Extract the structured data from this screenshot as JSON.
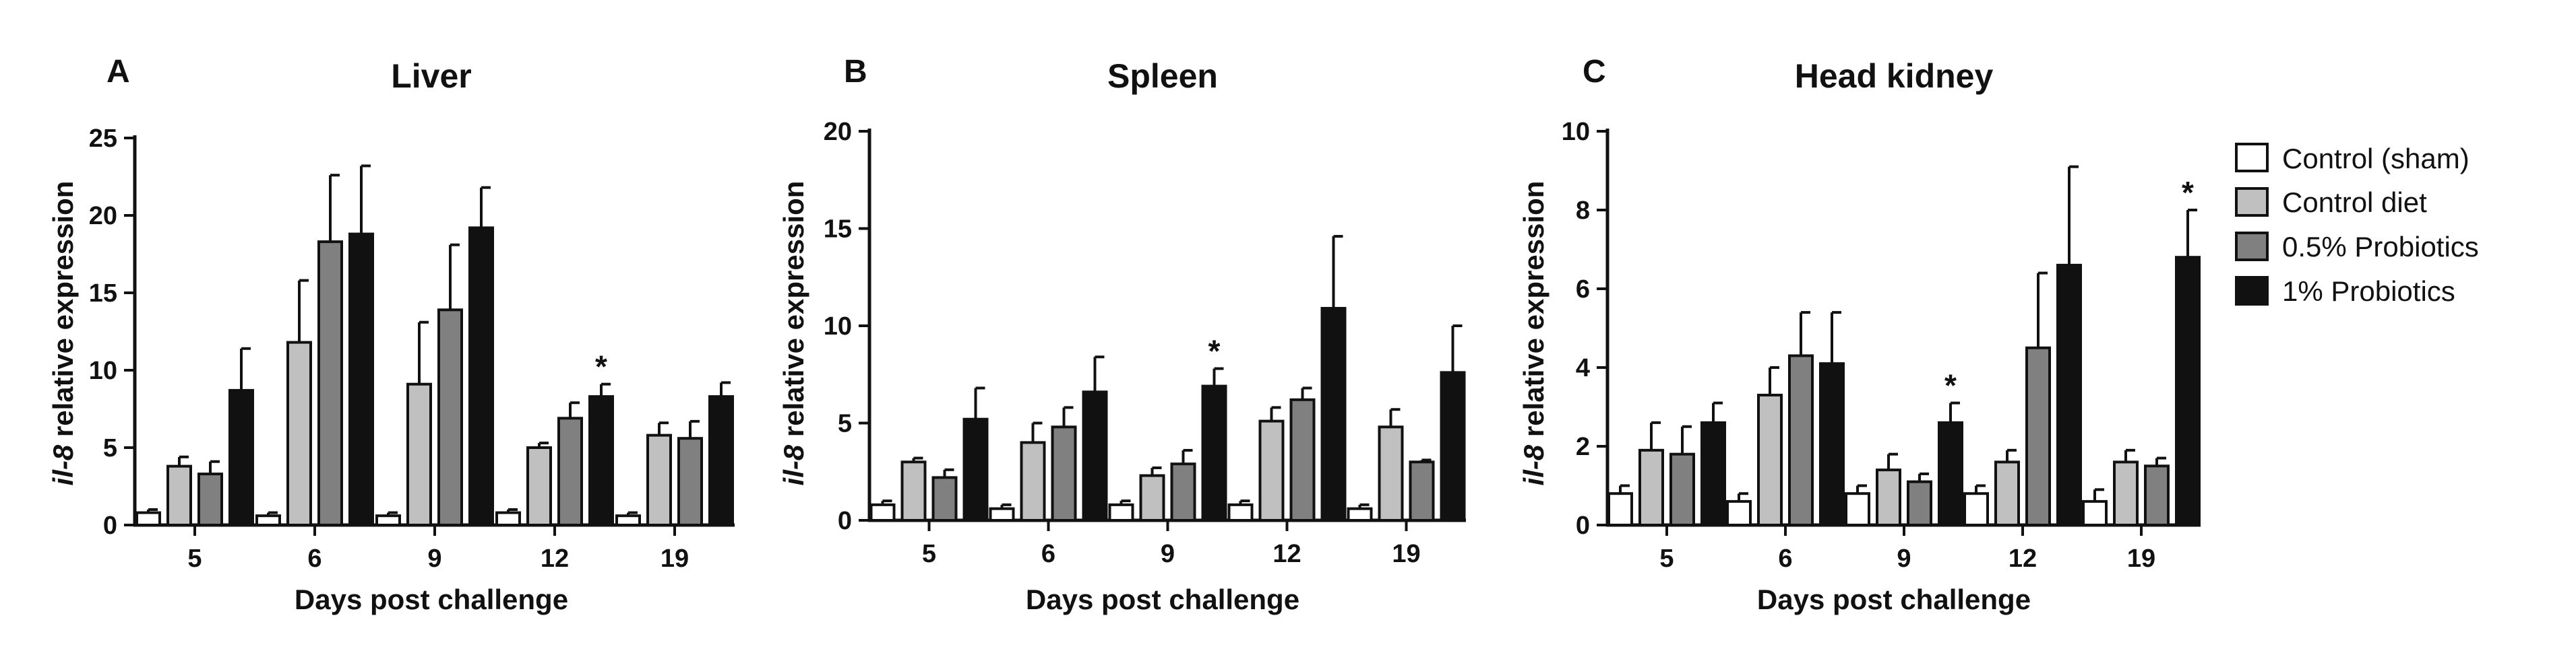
{
  "legend": [
    {
      "label": "Control (sham)",
      "color": "#ffffff"
    },
    {
      "label": "Control diet",
      "color": "#c0c0c0"
    },
    {
      "label": "0.5% Probiotics",
      "color": "#808080"
    },
    {
      "label": "1% Probiotics",
      "color": "#111111"
    }
  ],
  "chart_data": [
    {
      "type": "bar",
      "panel": "A",
      "title": "Liver",
      "xlabel": "Days post challenge",
      "ylabel_italic": "il-8",
      "ylabel_rest": " relative expression",
      "categories": [
        "5",
        "6",
        "9",
        "12",
        "19"
      ],
      "ylim": [
        0,
        25
      ],
      "yticks": [
        0,
        5,
        10,
        15,
        20,
        25
      ],
      "series": [
        {
          "name": "Control (sham)",
          "values": [
            0.8,
            0.6,
            0.6,
            0.8,
            0.6
          ],
          "errors": [
            0.2,
            0.2,
            0.2,
            0.2,
            0.2
          ]
        },
        {
          "name": "Control diet",
          "values": [
            3.8,
            11.8,
            9.1,
            5.0,
            5.8
          ],
          "errors": [
            0.6,
            4.0,
            4.0,
            0.3,
            0.8
          ]
        },
        {
          "name": "0.5% Probiotics",
          "values": [
            3.3,
            18.3,
            13.9,
            6.9,
            5.6
          ],
          "errors": [
            0.8,
            4.3,
            4.2,
            1.0,
            1.1
          ]
        },
        {
          "name": "1% Probiotics",
          "values": [
            8.7,
            18.8,
            19.2,
            8.3,
            8.3
          ],
          "errors": [
            2.7,
            4.4,
            2.6,
            0.8,
            0.9
          ]
        }
      ],
      "annotations": [
        {
          "category": "12",
          "series": "1% Probiotics",
          "text": "*"
        }
      ]
    },
    {
      "type": "bar",
      "panel": "B",
      "title": "Spleen",
      "xlabel": "Days post challenge",
      "ylabel_italic": "il-8",
      "ylabel_rest": " relative expression",
      "categories": [
        "5",
        "6",
        "9",
        "12",
        "19"
      ],
      "ylim": [
        0,
        20
      ],
      "yticks": [
        0,
        5,
        10,
        15,
        20
      ],
      "series": [
        {
          "name": "Control (sham)",
          "values": [
            0.8,
            0.6,
            0.8,
            0.8,
            0.6
          ],
          "errors": [
            0.2,
            0.2,
            0.2,
            0.2,
            0.2
          ]
        },
        {
          "name": "Control diet",
          "values": [
            3.0,
            4.0,
            2.3,
            5.1,
            4.8
          ],
          "errors": [
            0.2,
            1.0,
            0.4,
            0.7,
            0.9
          ]
        },
        {
          "name": "0.5% Probiotics",
          "values": [
            2.2,
            4.8,
            2.9,
            6.2,
            3.0
          ],
          "errors": [
            0.4,
            1.0,
            0.7,
            0.6,
            0.1
          ]
        },
        {
          "name": "1% Probiotics",
          "values": [
            5.2,
            6.6,
            6.9,
            10.9,
            7.6
          ],
          "errors": [
            1.6,
            1.8,
            0.9,
            3.7,
            2.4
          ]
        }
      ],
      "annotations": [
        {
          "category": "9",
          "series": "1% Probiotics",
          "text": "*"
        }
      ]
    },
    {
      "type": "bar",
      "panel": "C",
      "title": "Head kidney",
      "xlabel": "Days post challenge",
      "ylabel_italic": "il-8",
      "ylabel_rest": " relative expression",
      "categories": [
        "5",
        "6",
        "9",
        "12",
        "19"
      ],
      "ylim": [
        0,
        10
      ],
      "yticks": [
        0,
        2,
        4,
        6,
        8,
        10
      ],
      "series": [
        {
          "name": "Control (sham)",
          "values": [
            0.8,
            0.6,
            0.8,
            0.8,
            0.6
          ],
          "errors": [
            0.2,
            0.2,
            0.2,
            0.2,
            0.3
          ]
        },
        {
          "name": "Control diet",
          "values": [
            1.9,
            3.3,
            1.4,
            1.6,
            1.6
          ],
          "errors": [
            0.7,
            0.7,
            0.4,
            0.3,
            0.3
          ]
        },
        {
          "name": "0.5% Probiotics",
          "values": [
            1.8,
            4.3,
            1.1,
            4.5,
            1.5
          ],
          "errors": [
            0.7,
            1.1,
            0.2,
            1.9,
            0.2
          ]
        },
        {
          "name": "1% Probiotics",
          "values": [
            2.6,
            4.1,
            2.6,
            6.6,
            6.8
          ],
          "errors": [
            0.5,
            1.3,
            0.5,
            2.5,
            1.2
          ]
        }
      ],
      "annotations": [
        {
          "category": "9",
          "series": "1% Probiotics",
          "text": "*"
        },
        {
          "category": "19",
          "series": "1% Probiotics",
          "text": "*"
        }
      ]
    }
  ]
}
